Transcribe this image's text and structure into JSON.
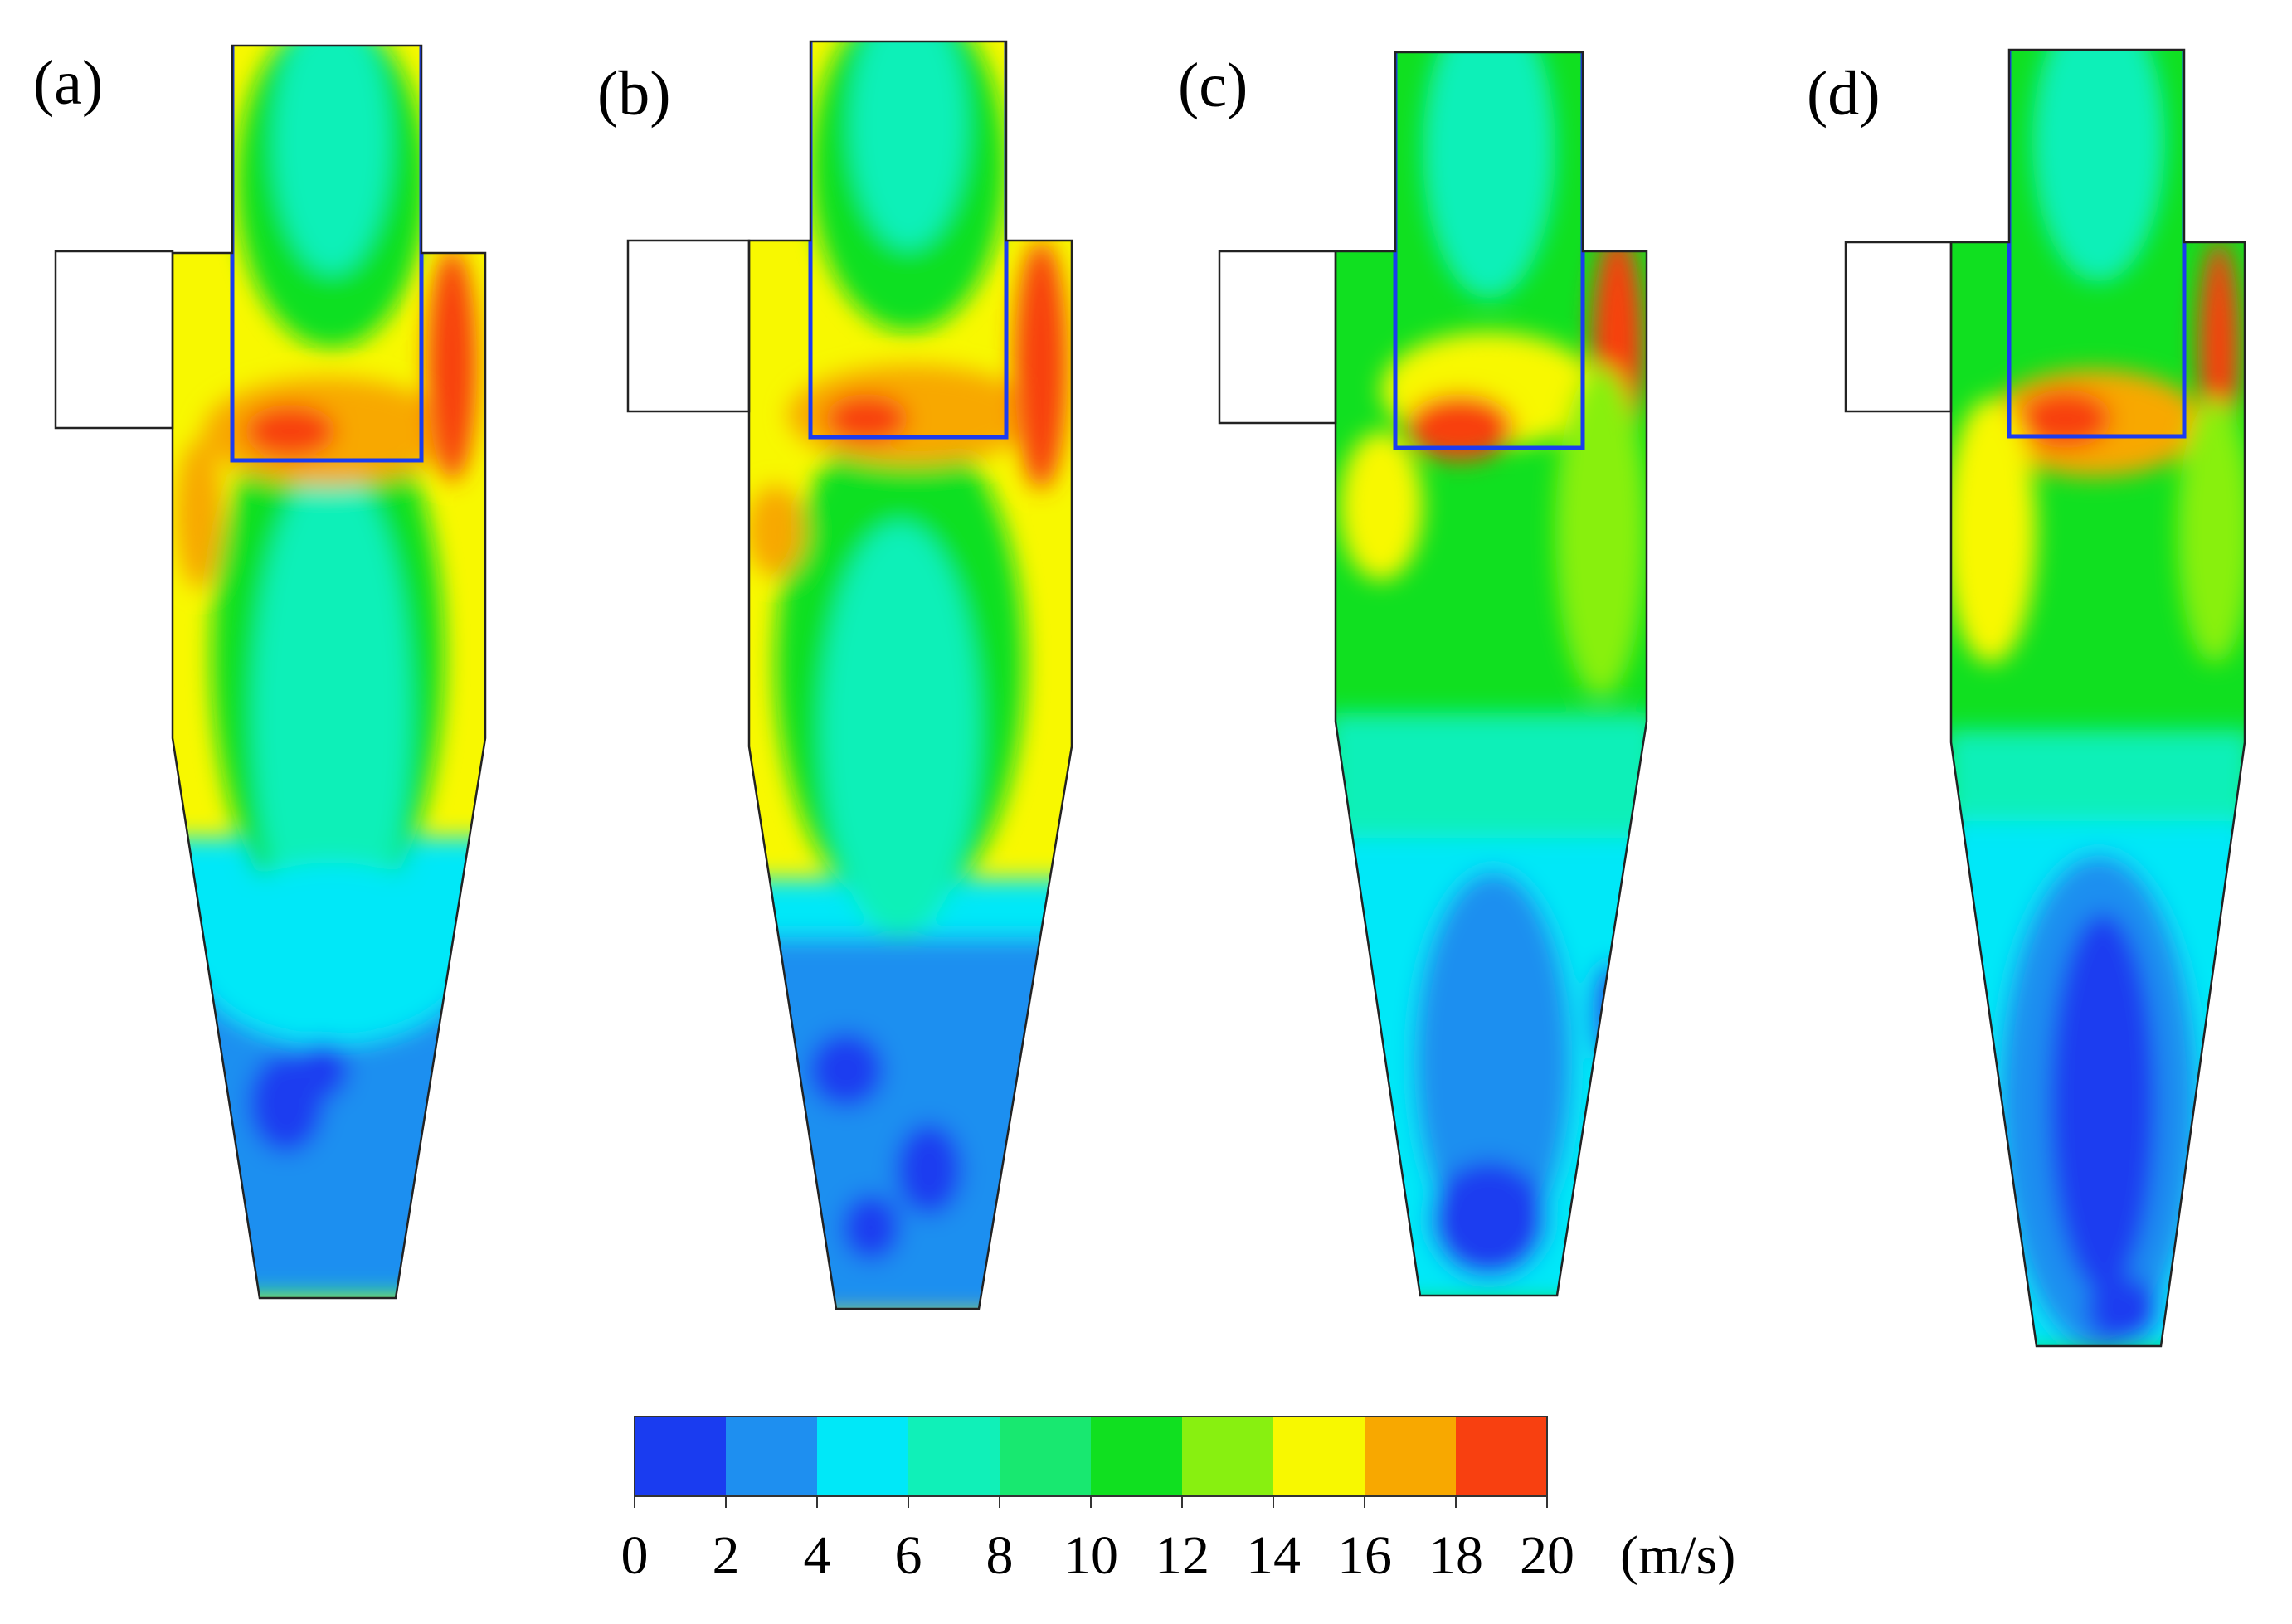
{
  "panels": [
    {
      "label": "(a)"
    },
    {
      "label": "(b)"
    },
    {
      "label": "(c)"
    },
    {
      "label": "(d)"
    }
  ],
  "colorbar": {
    "ticks": [
      "0",
      "2",
      "4",
      "6",
      "8",
      "10",
      "12",
      "14",
      "16",
      "18",
      "20"
    ],
    "unit": "(m/s)",
    "colors": [
      "#1a3cf0",
      "#1e8ff0",
      "#00e8f8",
      "#10f0b8",
      "#18e870",
      "#10e020",
      "#88f010",
      "#f8f800",
      "#f8a800",
      "#f84010"
    ]
  }
}
